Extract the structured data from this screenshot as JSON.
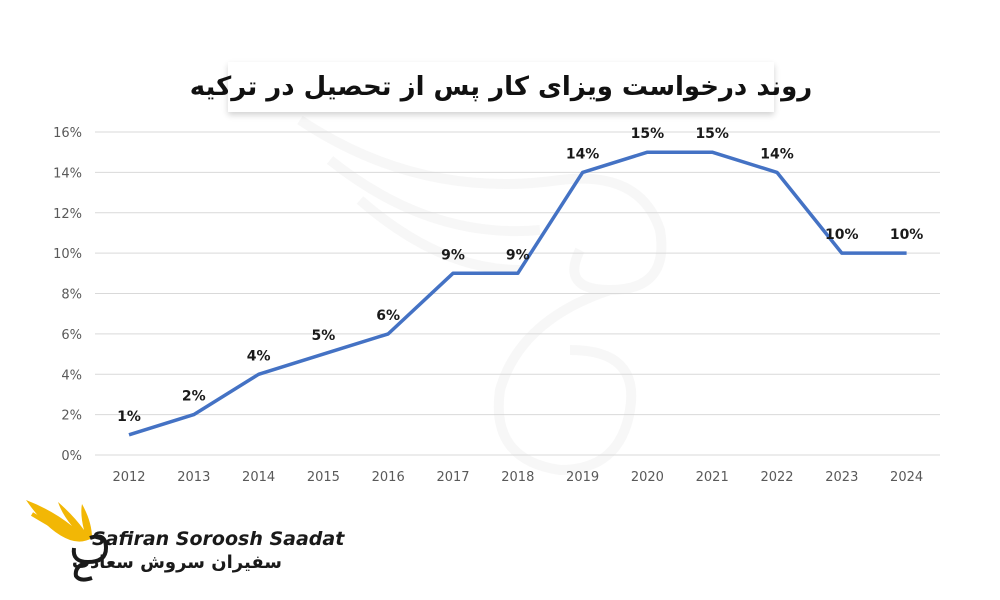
{
  "chart_data": {
    "type": "line",
    "title": "روند درخواست ویزای کار پس از تحصیل در ترکیه",
    "xlabel": "",
    "ylabel": "",
    "categories": [
      "2012",
      "2013",
      "2014",
      "2015",
      "2016",
      "2017",
      "2018",
      "2019",
      "2020",
      "2021",
      "2022",
      "2023",
      "2024"
    ],
    "values": [
      1,
      2,
      4,
      5,
      6,
      9,
      9,
      14,
      15,
      15,
      14,
      10,
      10
    ],
    "data_labels": [
      "1%",
      "2%",
      "4%",
      "5%",
      "6%",
      "9%",
      "9%",
      "14%",
      "15%",
      "15%",
      "14%",
      "10%",
      "10%"
    ],
    "ylim": [
      0,
      16
    ],
    "yticks": [
      0,
      2,
      4,
      6,
      8,
      10,
      12,
      14,
      16
    ],
    "ytick_labels": [
      "0%",
      "2%",
      "4%",
      "6%",
      "8%",
      "10%",
      "12%",
      "14%",
      "16%"
    ],
    "grid": true,
    "line_color": "#4472C4",
    "legend": "none"
  },
  "branding": {
    "name_en": "Safiran Soroosh Saadat",
    "name_fa": "سفیران سروش سعادت",
    "logo_icon": "winged-s-logo-icon",
    "accent_color": "#F2B705"
  }
}
